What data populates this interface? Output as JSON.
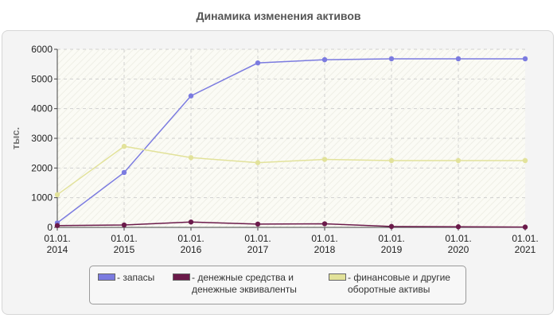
{
  "chart_data": {
    "type": "line",
    "title": "Динамика изменения активов",
    "ylabel": "тыс.",
    "xlabel": "",
    "categories": [
      "01.01.\n2014",
      "01.01.\n2015",
      "01.01.\n2016",
      "01.01.\n2017",
      "01.01.\n2018",
      "01.01.\n2019",
      "01.01.\n2020",
      "01.01.\n2021"
    ],
    "ylim": [
      0,
      6000
    ],
    "yticks": [
      "0",
      "1000",
      "2000",
      "3000",
      "4000",
      "5000",
      "6000"
    ],
    "grid": true,
    "legend_position": "bottom",
    "series": [
      {
        "name": "- запасы",
        "color": "#7b7be0",
        "values": [
          150,
          1850,
          4430,
          5540,
          5650,
          5680,
          5680,
          5680
        ]
      },
      {
        "name": "- денежные средства и денежные эквиваленты",
        "color": "#6b1a4a",
        "values": [
          60,
          80,
          180,
          110,
          120,
          30,
          20,
          10
        ]
      },
      {
        "name": "- финансовые и другие оборотные активы",
        "color": "#e2e29a",
        "values": [
          1100,
          2730,
          2350,
          2180,
          2290,
          2250,
          2250,
          2250
        ]
      }
    ]
  }
}
